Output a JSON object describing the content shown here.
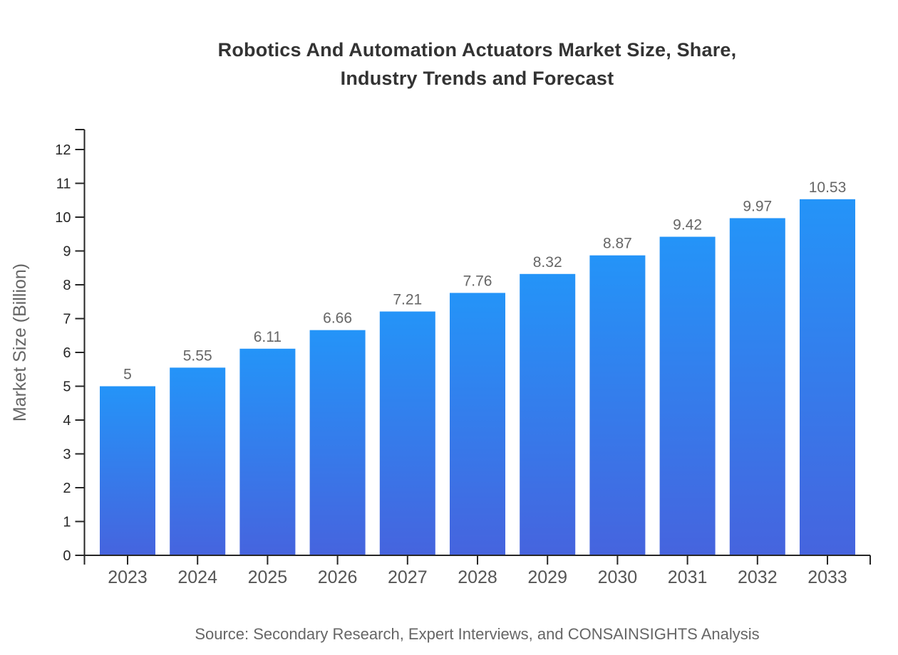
{
  "header": {
    "title_lines": [
      "Robotics And Automation Actuators Market Size, Share,",
      "Industry Trends and Forecast"
    ]
  },
  "footer": {
    "source": "Source: Secondary Research, Expert Interviews, and CONSAINSIGHTS Analysis"
  },
  "chart_data": {
    "type": "bar",
    "title": "Robotics And Automation Actuators Market Size, Share, Industry Trends and Forecast",
    "categories": [
      "2023",
      "2024",
      "2025",
      "2026",
      "2027",
      "2028",
      "2029",
      "2030",
      "2031",
      "2032",
      "2033"
    ],
    "values": [
      5,
      5.55,
      6.11,
      6.66,
      7.21,
      7.76,
      8.32,
      8.87,
      9.42,
      9.97,
      10.53
    ],
    "value_labels": [
      "5",
      "5.55",
      "6.11",
      "6.66",
      "7.21",
      "7.76",
      "8.32",
      "8.87",
      "9.42",
      "9.97",
      "10.53"
    ],
    "xlabel": "",
    "ylabel": "Market Size (Billion)",
    "ylim": [
      0,
      12.6
    ],
    "yticks": [
      0,
      1,
      2,
      3,
      4,
      5,
      6,
      7,
      8,
      9,
      10,
      11,
      12
    ],
    "grid": false,
    "legend": "none",
    "source": "Source: Secondary Research, Expert Interviews, and CONSAINSIGHTS Analysis",
    "colors": {
      "bar_gradient_top": "#2494F8",
      "bar_gradient_bottom": "#4664DE",
      "axis": "#262626",
      "title_text": "#333333",
      "y_tick_label": "#262626",
      "x_tick_label": "#555555",
      "value_label": "#666666",
      "muted_text": "#666666",
      "background": "#ffffff"
    }
  }
}
